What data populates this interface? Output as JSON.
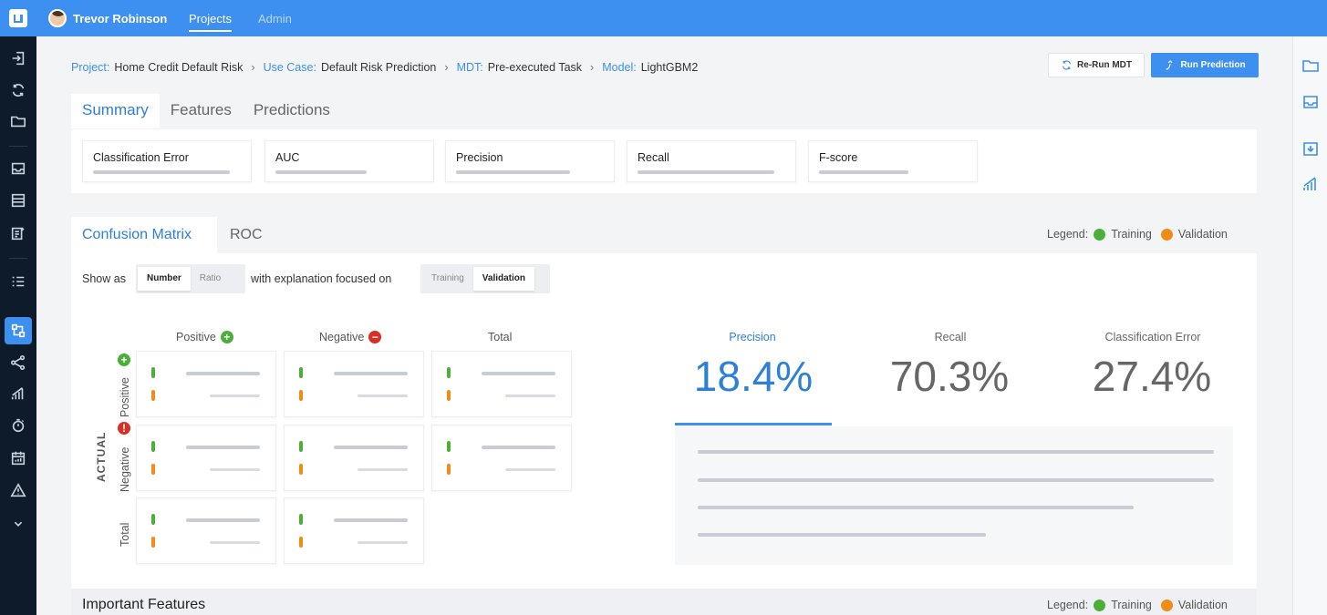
{
  "topbar": {
    "user_name": "Trevor Robinson",
    "nav": {
      "projects": "Projects",
      "admin": "Admin"
    }
  },
  "breadcrumb": [
    {
      "label": "Project:",
      "value": "Home Credit Default Risk"
    },
    {
      "label": "Use Case:",
      "value": "Default Risk Prediction"
    },
    {
      "label": "MDT:",
      "value": "Pre-executed Task"
    },
    {
      "label": "Model:",
      "value": "LightGBM2"
    }
  ],
  "actions": {
    "rerun": "Re-Run MDT",
    "run": "Run Prediction"
  },
  "summary_tabs": [
    "Summary",
    "Features",
    "Predictions"
  ],
  "metrics": [
    "Classification Error",
    "AUC",
    "Precision",
    "Recall",
    "F-score"
  ],
  "confusion": {
    "tabs": [
      "Confusion Matrix",
      "ROC"
    ],
    "legend": {
      "label": "Legend:",
      "training": "Training",
      "validation": "Validation"
    },
    "show_as_label": "Show as",
    "show_as_options": [
      "Number",
      "Ratio"
    ],
    "show_as_selected": "Number",
    "explanation_label": "with explanation focused on",
    "explanation_options": [
      "Training",
      "Validation"
    ],
    "explanation_selected": "Validation",
    "columns": [
      "Positive",
      "Negative",
      "Total"
    ],
    "rows": [
      "Positive",
      "Negative",
      "Total"
    ],
    "actual_label": "ACTUAL",
    "stats": [
      {
        "label": "Precision",
        "value": "18.4%",
        "selected": true
      },
      {
        "label": "Recall",
        "value": "70.3%"
      },
      {
        "label": "Classification Error",
        "value": "27.4%"
      }
    ]
  },
  "important_features": {
    "title": "Important Features",
    "legend": {
      "label": "Legend:",
      "training": "Training",
      "validation": "Validation"
    }
  },
  "colors": {
    "accent": "#3d8ff0",
    "training": "#4caf3a",
    "validation": "#f28c18",
    "sidebar": "#0e1b2b"
  }
}
